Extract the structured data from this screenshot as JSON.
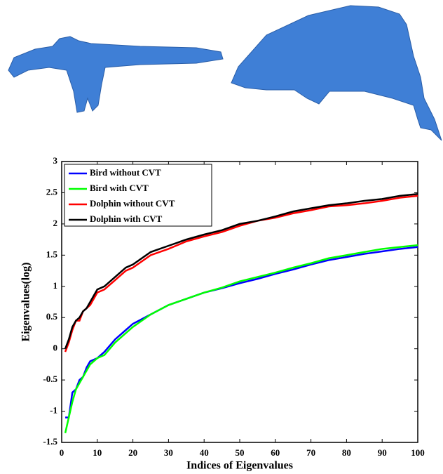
{
  "chart_data": {
    "type": "line",
    "xlabel": "Indices of Eigenvalues",
    "ylabel": "Eigenvalues(log)",
    "x": [
      1,
      2,
      3,
      4,
      5,
      6,
      7,
      8,
      10,
      12,
      15,
      18,
      20,
      25,
      30,
      35,
      40,
      45,
      50,
      55,
      60,
      65,
      70,
      75,
      80,
      85,
      90,
      95,
      100
    ],
    "series": [
      {
        "name": "Bird without CVT",
        "color": "#0000ff",
        "values": [
          -1.1,
          -1.1,
          -0.7,
          -0.65,
          -0.5,
          -0.45,
          -0.3,
          -0.2,
          -0.15,
          -0.05,
          0.15,
          0.3,
          0.4,
          0.55,
          0.7,
          0.8,
          0.9,
          0.97,
          1.05,
          1.12,
          1.2,
          1.27,
          1.35,
          1.42,
          1.47,
          1.52,
          1.56,
          1.6,
          1.63
        ]
      },
      {
        "name": "Bird with CVT",
        "color": "#00ff00",
        "values": [
          -1.35,
          -1.1,
          -0.85,
          -0.65,
          -0.55,
          -0.45,
          -0.35,
          -0.25,
          -0.15,
          -0.1,
          0.1,
          0.25,
          0.35,
          0.55,
          0.7,
          0.8,
          0.9,
          0.98,
          1.08,
          1.15,
          1.22,
          1.3,
          1.37,
          1.45,
          1.5,
          1.55,
          1.6,
          1.63,
          1.66
        ]
      },
      {
        "name": "Dolphin without CVT",
        "color": "#ff0000",
        "values": [
          -0.05,
          0.1,
          0.3,
          0.45,
          0.45,
          0.6,
          0.65,
          0.7,
          0.9,
          0.95,
          1.1,
          1.25,
          1.3,
          1.5,
          1.6,
          1.72,
          1.8,
          1.87,
          1.97,
          2.05,
          2.1,
          2.17,
          2.22,
          2.28,
          2.3,
          2.33,
          2.37,
          2.42,
          2.45
        ]
      },
      {
        "name": "Dolphin with CVT",
        "color": "#000000",
        "values": [
          0,
          0.15,
          0.35,
          0.45,
          0.5,
          0.6,
          0.65,
          0.75,
          0.95,
          1.0,
          1.15,
          1.3,
          1.35,
          1.55,
          1.65,
          1.75,
          1.83,
          1.9,
          2.0,
          2.05,
          2.12,
          2.2,
          2.25,
          2.3,
          2.33,
          2.37,
          2.4,
          2.45,
          2.48
        ]
      }
    ],
    "xlim": [
      0,
      100
    ],
    "xticks": [
      0,
      10,
      20,
      30,
      40,
      50,
      60,
      70,
      80,
      90,
      100
    ],
    "ylim": [
      -1.5,
      3
    ],
    "yticks": [
      -1.5,
      -1,
      -0.5,
      0,
      0.5,
      1,
      1.5,
      2,
      2.5,
      3
    ],
    "legend": "upper left",
    "grid": false
  }
}
